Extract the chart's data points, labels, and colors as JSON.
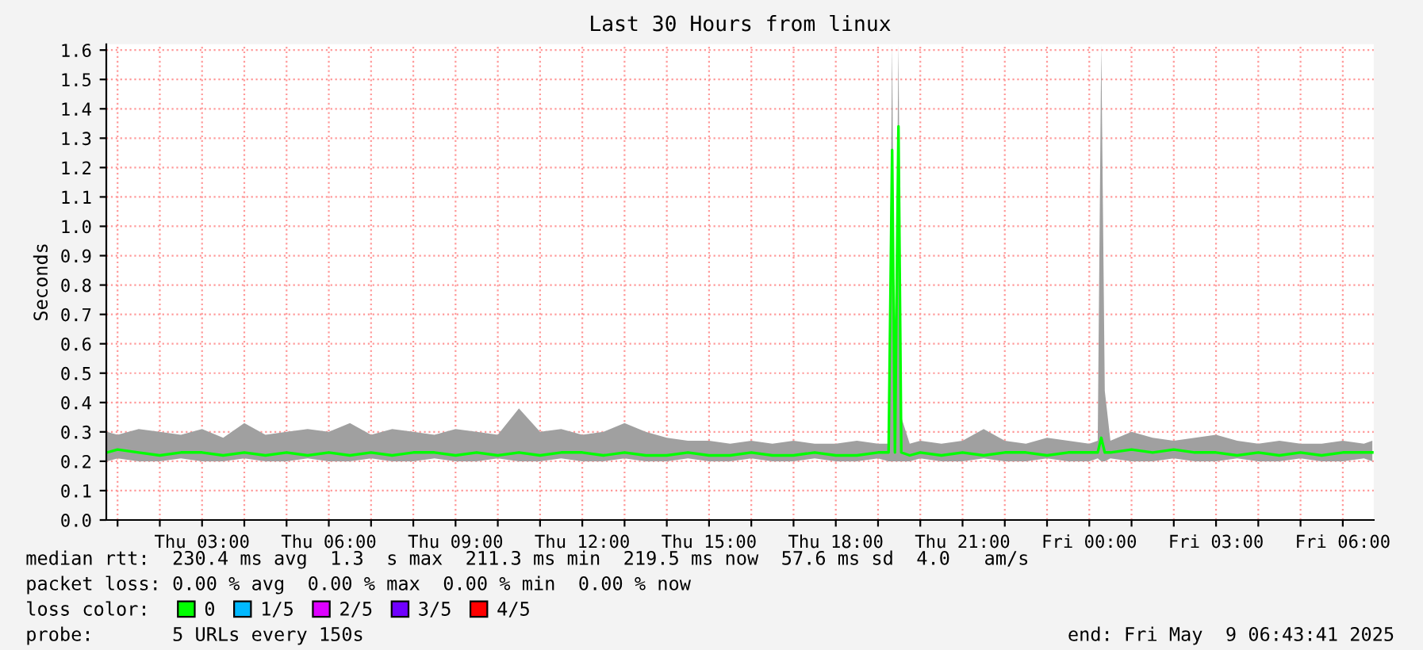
{
  "chart_data": {
    "type": "line",
    "title": "Last 30 Hours from linux",
    "ylabel": "Seconds",
    "x": [
      "2025-05-08T00:45",
      "2025-05-08T01:00",
      "2025-05-08T01:30",
      "2025-05-08T02:00",
      "2025-05-08T02:30",
      "2025-05-08T03:00",
      "2025-05-08T03:30",
      "2025-05-08T04:00",
      "2025-05-08T04:30",
      "2025-05-08T05:00",
      "2025-05-08T05:30",
      "2025-05-08T06:00",
      "2025-05-08T06:30",
      "2025-05-08T07:00",
      "2025-05-08T07:30",
      "2025-05-08T08:00",
      "2025-05-08T08:30",
      "2025-05-08T09:00",
      "2025-05-08T09:30",
      "2025-05-08T10:00",
      "2025-05-08T10:30",
      "2025-05-08T11:00",
      "2025-05-08T11:30",
      "2025-05-08T12:00",
      "2025-05-08T12:30",
      "2025-05-08T13:00",
      "2025-05-08T13:30",
      "2025-05-08T14:00",
      "2025-05-08T14:30",
      "2025-05-08T15:00",
      "2025-05-08T15:30",
      "2025-05-08T16:00",
      "2025-05-08T16:30",
      "2025-05-08T17:00",
      "2025-05-08T17:30",
      "2025-05-08T18:00",
      "2025-05-08T18:30",
      "2025-05-08T19:00",
      "2025-05-08T19:15",
      "2025-05-08T19:20",
      "2025-05-08T19:24",
      "2025-05-08T19:29",
      "2025-05-08T19:33",
      "2025-05-08T19:45",
      "2025-05-08T20:00",
      "2025-05-08T20:30",
      "2025-05-08T21:00",
      "2025-05-08T21:30",
      "2025-05-08T22:00",
      "2025-05-08T22:30",
      "2025-05-08T23:00",
      "2025-05-08T23:30",
      "2025-05-09T00:00",
      "2025-05-09T00:12",
      "2025-05-09T00:17",
      "2025-05-09T00:22",
      "2025-05-09T00:30",
      "2025-05-09T01:00",
      "2025-05-09T01:30",
      "2025-05-09T02:00",
      "2025-05-09T02:30",
      "2025-05-09T03:00",
      "2025-05-09T03:30",
      "2025-05-09T04:00",
      "2025-05-09T04:30",
      "2025-05-09T05:00",
      "2025-05-09T05:30",
      "2025-05-09T06:00",
      "2025-05-09T06:30",
      "2025-05-09T06:42"
    ],
    "series": [
      {
        "name": "0",
        "color": "#00ff00",
        "values": [
          0.23,
          0.24,
          0.23,
          0.22,
          0.23,
          0.23,
          0.22,
          0.23,
          0.22,
          0.23,
          0.22,
          0.23,
          0.22,
          0.23,
          0.22,
          0.23,
          0.23,
          0.22,
          0.23,
          0.22,
          0.23,
          0.22,
          0.23,
          0.23,
          0.22,
          0.23,
          0.22,
          0.22,
          0.23,
          0.22,
          0.22,
          0.23,
          0.22,
          0.22,
          0.23,
          0.22,
          0.22,
          0.23,
          0.23,
          1.26,
          0.23,
          1.34,
          0.23,
          0.22,
          0.23,
          0.22,
          0.23,
          0.22,
          0.23,
          0.23,
          0.22,
          0.23,
          0.23,
          0.23,
          0.28,
          0.23,
          0.23,
          0.24,
          0.23,
          0.24,
          0.23,
          0.23,
          0.22,
          0.23,
          0.22,
          0.23,
          0.22,
          0.23,
          0.23,
          0.23
        ],
        "lower": [
          0.2,
          0.21,
          0.2,
          0.2,
          0.21,
          0.2,
          0.2,
          0.21,
          0.2,
          0.2,
          0.21,
          0.2,
          0.2,
          0.21,
          0.2,
          0.2,
          0.21,
          0.2,
          0.2,
          0.21,
          0.2,
          0.2,
          0.21,
          0.2,
          0.2,
          0.21,
          0.2,
          0.2,
          0.21,
          0.2,
          0.2,
          0.21,
          0.2,
          0.2,
          0.21,
          0.2,
          0.2,
          0.21,
          0.2,
          0.2,
          0.2,
          0.2,
          0.2,
          0.2,
          0.21,
          0.2,
          0.2,
          0.21,
          0.2,
          0.2,
          0.21,
          0.2,
          0.2,
          0.21,
          0.2,
          0.2,
          0.21,
          0.2,
          0.2,
          0.21,
          0.2,
          0.2,
          0.21,
          0.2,
          0.2,
          0.21,
          0.2,
          0.2,
          0.21,
          0.2
        ],
        "upper": [
          0.3,
          0.29,
          0.31,
          0.3,
          0.29,
          0.31,
          0.28,
          0.33,
          0.29,
          0.3,
          0.31,
          0.3,
          0.33,
          0.29,
          0.31,
          0.3,
          0.29,
          0.31,
          0.3,
          0.29,
          0.38,
          0.3,
          0.31,
          0.29,
          0.3,
          0.33,
          0.3,
          0.28,
          0.27,
          0.27,
          0.26,
          0.27,
          0.26,
          0.27,
          0.26,
          0.26,
          0.27,
          0.26,
          0.26,
          1.62,
          0.35,
          1.62,
          0.35,
          0.26,
          0.27,
          0.26,
          0.27,
          0.31,
          0.27,
          0.26,
          0.28,
          0.27,
          0.26,
          0.27,
          1.62,
          0.44,
          0.27,
          0.3,
          0.28,
          0.27,
          0.28,
          0.29,
          0.27,
          0.26,
          0.27,
          0.26,
          0.26,
          0.27,
          0.26,
          0.27
        ]
      },
      {
        "name": "1/5",
        "color": "#00b8ff",
        "values": [
          null,
          null,
          null,
          null,
          null,
          null,
          null,
          null,
          null,
          null,
          null,
          null,
          null,
          null,
          null,
          null,
          null,
          null,
          null,
          null,
          null,
          null,
          null,
          null,
          null,
          null,
          null,
          null,
          null,
          null,
          null,
          null,
          null,
          null,
          null,
          null,
          null,
          null,
          null,
          null,
          null,
          null,
          null,
          null,
          null,
          null,
          null,
          null,
          null,
          null,
          null,
          null,
          null,
          null,
          null,
          null,
          null,
          null,
          null,
          null,
          null,
          null,
          null,
          null,
          null,
          null,
          null,
          null,
          null,
          null
        ]
      },
      {
        "name": "2/5",
        "color": "#dd00ff",
        "values": [
          null,
          null,
          null,
          null,
          null,
          null,
          null,
          null,
          null,
          null,
          null,
          null,
          null,
          null,
          null,
          null,
          null,
          null,
          null,
          null,
          null,
          null,
          null,
          null,
          null,
          null,
          null,
          null,
          null,
          null,
          null,
          null,
          null,
          null,
          null,
          null,
          null,
          null,
          null,
          null,
          null,
          null,
          null,
          null,
          null,
          null,
          null,
          null,
          null,
          null,
          null,
          null,
          null,
          null,
          null,
          null,
          null,
          null,
          null,
          null,
          null,
          null,
          null,
          null,
          null,
          null,
          null,
          null,
          null,
          null
        ]
      },
      {
        "name": "3/5",
        "color": "#7000ff",
        "values": [
          null,
          null,
          null,
          null,
          null,
          null,
          null,
          null,
          null,
          null,
          null,
          null,
          null,
          null,
          null,
          null,
          null,
          null,
          null,
          null,
          null,
          null,
          null,
          null,
          null,
          null,
          null,
          null,
          null,
          null,
          null,
          null,
          null,
          null,
          null,
          null,
          null,
          null,
          null,
          null,
          null,
          null,
          null,
          null,
          null,
          null,
          null,
          null,
          null,
          null,
          null,
          null,
          null,
          null,
          null,
          null,
          null,
          null,
          null,
          null,
          null,
          null,
          null,
          null,
          null,
          null,
          null,
          null,
          null,
          null
        ]
      },
      {
        "name": "4/5",
        "color": "#ff0000",
        "values": [
          null,
          null,
          null,
          null,
          null,
          null,
          null,
          null,
          null,
          null,
          null,
          null,
          null,
          null,
          null,
          null,
          null,
          null,
          null,
          null,
          null,
          null,
          null,
          null,
          null,
          null,
          null,
          null,
          null,
          null,
          null,
          null,
          null,
          null,
          null,
          null,
          null,
          null,
          null,
          null,
          null,
          null,
          null,
          null,
          null,
          null,
          null,
          null,
          null,
          null,
          null,
          null,
          null,
          null,
          null,
          null,
          null,
          null,
          null,
          null,
          null,
          null,
          null,
          null,
          null,
          null,
          null,
          null,
          null,
          null
        ]
      }
    ],
    "legend": "bottom",
    "legend_title": "loss color:",
    "xlim": [
      "2025-05-08T00:44",
      "2025-05-09T06:44"
    ],
    "xticks": [
      {
        "value": "2025-05-08T01:00",
        "label": null
      },
      {
        "value": "2025-05-08T02:00",
        "label": null
      },
      {
        "value": "2025-05-08T03:00",
        "label": "Thu 03:00"
      },
      {
        "value": "2025-05-08T04:00",
        "label": null
      },
      {
        "value": "2025-05-08T05:00",
        "label": null
      },
      {
        "value": "2025-05-08T06:00",
        "label": "Thu 06:00"
      },
      {
        "value": "2025-05-08T07:00",
        "label": null
      },
      {
        "value": "2025-05-08T08:00",
        "label": null
      },
      {
        "value": "2025-05-08T09:00",
        "label": "Thu 09:00"
      },
      {
        "value": "2025-05-08T10:00",
        "label": null
      },
      {
        "value": "2025-05-08T11:00",
        "label": null
      },
      {
        "value": "2025-05-08T12:00",
        "label": "Thu 12:00"
      },
      {
        "value": "2025-05-08T13:00",
        "label": null
      },
      {
        "value": "2025-05-08T14:00",
        "label": null
      },
      {
        "value": "2025-05-08T15:00",
        "label": "Thu 15:00"
      },
      {
        "value": "2025-05-08T16:00",
        "label": null
      },
      {
        "value": "2025-05-08T17:00",
        "label": null
      },
      {
        "value": "2025-05-08T18:00",
        "label": "Thu 18:00"
      },
      {
        "value": "2025-05-08T19:00",
        "label": null
      },
      {
        "value": "2025-05-08T20:00",
        "label": null
      },
      {
        "value": "2025-05-08T21:00",
        "label": "Thu 21:00"
      },
      {
        "value": "2025-05-08T22:00",
        "label": null
      },
      {
        "value": "2025-05-08T23:00",
        "label": null
      },
      {
        "value": "2025-05-09T00:00",
        "label": "Fri 00:00"
      },
      {
        "value": "2025-05-09T01:00",
        "label": null
      },
      {
        "value": "2025-05-09T02:00",
        "label": null
      },
      {
        "value": "2025-05-09T03:00",
        "label": "Fri 03:00"
      },
      {
        "value": "2025-05-09T04:00",
        "label": null
      },
      {
        "value": "2025-05-09T05:00",
        "label": null
      },
      {
        "value": "2025-05-09T06:00",
        "label": "Fri 06:00"
      }
    ],
    "ylim": [
      0,
      1.62
    ],
    "yticks": [
      {
        "value": 0,
        "label": "0.0"
      },
      0.1,
      0.2,
      0.3,
      0.4,
      0.5,
      0.6,
      0.7,
      0.8,
      0.9,
      {
        "value": 1,
        "label": "1.0"
      },
      1.1,
      1.2,
      1.3,
      1.4,
      1.5,
      1.6
    ],
    "grid": true,
    "annotations": [
      "median rtt:  230.4 ms avg  1.3  s max  211.3 ms min  219.5 ms now  57.6 ms sd  4.0   am/s",
      "packet loss: 0.00 % avg  0.00 % max  0.00 % min  0.00 % now",
      "probe:       5 URLs every 150s",
      "end: Fri May  9 06:43:41 2025"
    ]
  }
}
